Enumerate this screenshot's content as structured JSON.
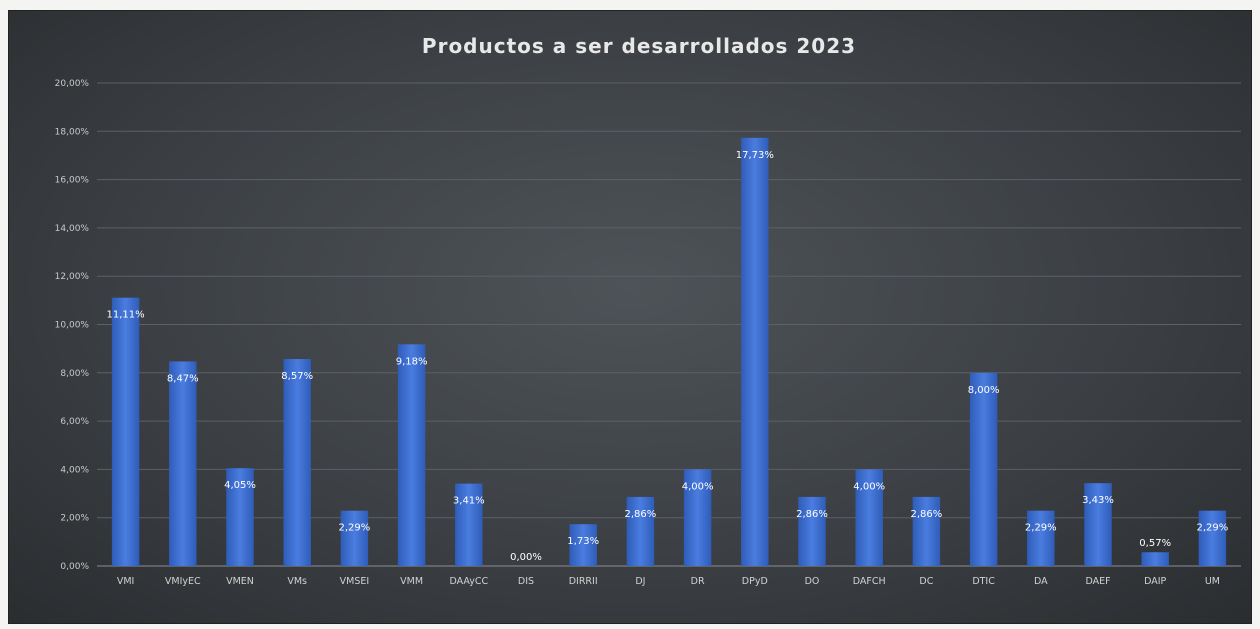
{
  "chart_data": {
    "type": "bar",
    "title": "Productos a ser desarrollados 2023",
    "xlabel": "",
    "ylabel": "",
    "ylim": [
      0,
      20
    ],
    "y_ticks": [
      "0,00%",
      "2,00%",
      "4,00%",
      "6,00%",
      "8,00%",
      "10,00%",
      "12,00%",
      "14,00%",
      "16,00%",
      "18,00%",
      "20,00%"
    ],
    "grid": true,
    "legend": "none",
    "categories": [
      "VMI",
      "VMIyEC",
      "VMEN",
      "VMs",
      "VMSEI",
      "VMM",
      "DAAyCC",
      "DIS",
      "DIRRII",
      "DJ",
      "DR",
      "DPyD",
      "DO",
      "DAFCH",
      "DC",
      "DTIC",
      "DA",
      "DAEF",
      "DAIP",
      "UM"
    ],
    "values": [
      11.11,
      8.47,
      4.05,
      8.57,
      2.29,
      9.18,
      3.41,
      0.0,
      1.73,
      2.86,
      4.0,
      17.73,
      2.86,
      4.0,
      2.86,
      8.0,
      2.29,
      3.43,
      0.57,
      2.29
    ],
    "data_labels": [
      "11,11%",
      "8,47%",
      "4,05%",
      "8,57%",
      "2,29%",
      "9,18%",
      "3,41%",
      "0,00%",
      "1,73%",
      "2,86%",
      "4,00%",
      "17,73%",
      "2,86%",
      "4,00%",
      "2,86%",
      "8,00%",
      "2,29%",
      "3,43%",
      "0,57%",
      "2,29%"
    ],
    "colors": {
      "bar": "#3d6fd1",
      "bar_highlight": "#5a8ae6",
      "background": "#3c4044"
    }
  }
}
